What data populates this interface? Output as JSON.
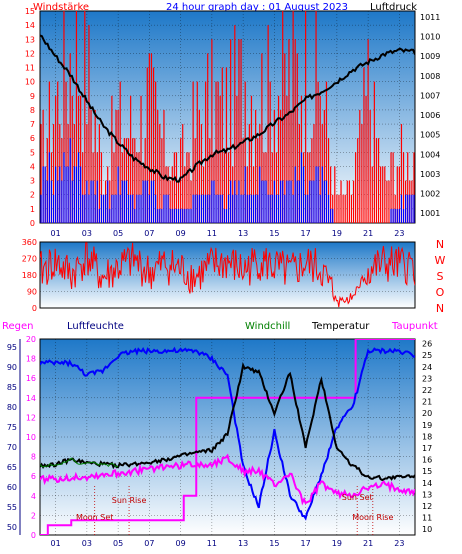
{
  "title": "24 hour graph day : 01 August 2023",
  "colors": {
    "red": "#ff0000",
    "blue": "#0000ff",
    "black": "#000000",
    "magenta": "#ff00ff",
    "green": "#008000",
    "navy": "#000080",
    "darkred": "#c00000",
    "sky_top": "#1e78c8",
    "sky_bottom": "#ffffff"
  },
  "chart_data": [
    {
      "id": "wind_pressure",
      "type": "bar",
      "title": "24 hour graph day : 01 August 2023",
      "left_label": "Windstärke",
      "right_label": "Luftdruck",
      "x_ticks": [
        "01",
        "03",
        "05",
        "07",
        "09",
        "11",
        "13",
        "15",
        "17",
        "19",
        "21",
        "23"
      ],
      "y_left_ticks": [
        "0",
        "1",
        "2",
        "3",
        "4",
        "5",
        "6",
        "7",
        "8",
        "9",
        "10",
        "11",
        "12",
        "13",
        "14",
        "15"
      ],
      "y_left_range": [
        0,
        15
      ],
      "y_right_ticks": [
        "1001",
        "1002",
        "1003",
        "1004",
        "1005",
        "1006",
        "1007",
        "1008",
        "1009",
        "1010",
        "1011"
      ],
      "y_right_range": [
        1000.5,
        1011.3
      ],
      "x_range": [
        0,
        24
      ],
      "series": [
        {
          "role": "gust",
          "color": "red",
          "x": [
            0,
            1,
            2,
            3,
            4,
            5,
            6,
            7,
            8,
            9,
            10,
            11,
            12,
            13,
            14,
            15,
            16,
            17,
            18,
            19,
            20,
            21,
            22,
            23
          ],
          "values": [
            6,
            11,
            15,
            14,
            5,
            9,
            8,
            11,
            6,
            5,
            9,
            11,
            10,
            13,
            12,
            12,
            13,
            14,
            12,
            2,
            3,
            12,
            4,
            6
          ]
        },
        {
          "role": "average",
          "color": "blue",
          "x": [
            0,
            1,
            2,
            3,
            4,
            5,
            6,
            7,
            8,
            9,
            10,
            11,
            12,
            13,
            14,
            15,
            16,
            17,
            18,
            19,
            20,
            21,
            22,
            23
          ],
          "values": [
            3,
            4,
            5,
            4,
            2,
            3,
            2,
            3,
            2,
            1,
            2,
            3,
            2,
            3,
            3,
            3,
            3,
            4,
            3,
            0,
            0,
            0,
            0,
            2
          ]
        },
        {
          "role": "pressure",
          "color": "black",
          "axis": "right",
          "x": [
            0,
            1,
            2,
            3,
            4,
            5,
            6,
            7,
            8,
            9,
            10,
            11,
            12,
            13,
            14,
            15,
            16,
            17,
            18,
            19,
            20,
            21,
            22,
            23,
            24
          ],
          "values": [
            1010.1,
            1009.0,
            1008.0,
            1006.7,
            1005.5,
            1004.6,
            1003.8,
            1003.3,
            1002.8,
            1002.7,
            1003.4,
            1004.0,
            1004.2,
            1004.6,
            1005.0,
            1005.6,
            1006.1,
            1006.8,
            1007.2,
            1007.7,
            1008.3,
            1008.7,
            1009.1,
            1009.3,
            1009.2
          ]
        }
      ]
    },
    {
      "id": "wind_direction",
      "type": "line",
      "y_ticks": [
        "0",
        "90",
        "180",
        "270",
        "360"
      ],
      "y_range": [
        0,
        360
      ],
      "compass_labels": [
        "N",
        "W",
        "S",
        "O",
        "N"
      ],
      "x_range": [
        0,
        24
      ],
      "series": [
        {
          "role": "direction",
          "color": "red",
          "x": [
            0,
            1,
            2,
            3,
            4,
            5,
            6,
            7,
            8,
            9,
            10,
            11,
            12,
            13,
            14,
            15,
            16,
            17,
            18,
            19,
            20,
            21,
            22,
            23
          ],
          "values": [
            200,
            250,
            180,
            280,
            160,
            220,
            260,
            190,
            240,
            210,
            170,
            230,
            250,
            200,
            260,
            220,
            190,
            240,
            210,
            30,
            60,
            200,
            240,
            230
          ]
        }
      ]
    },
    {
      "id": "rain_humidity_temperature",
      "type": "line",
      "labels": {
        "regen": "Regen",
        "luftfeuchte": "Luftfeuchte",
        "windchill": "Windchill",
        "temperatur": "Temperatur",
        "taupunkt": "Taupunkt"
      },
      "x_ticks": [
        "01",
        "03",
        "05",
        "07",
        "09",
        "11",
        "13",
        "15",
        "17",
        "19",
        "21",
        "23"
      ],
      "x_range": [
        0,
        24
      ],
      "y_rain_ticks": [
        "0",
        "2",
        "4",
        "6",
        "8",
        "10",
        "12",
        "14",
        "16",
        "18",
        "20"
      ],
      "y_rain_range": [
        0,
        20
      ],
      "y_hum_ticks": [
        "50",
        "55",
        "60",
        "65",
        "70",
        "75",
        "80",
        "85",
        "90",
        "95"
      ],
      "y_hum_range": [
        48,
        97
      ],
      "y_temp_ticks": [
        "10",
        "11",
        "12",
        "13",
        "14",
        "15",
        "16",
        "17",
        "18",
        "19",
        "20",
        "21",
        "22",
        "23",
        "24",
        "25",
        "26"
      ],
      "y_temp_range": [
        9.5,
        26.4
      ],
      "annotations": [
        {
          "text": "Sun Rise",
          "x": 5.7
        },
        {
          "text": "Moon Set",
          "x": 3.5
        },
        {
          "text": "Sun Set",
          "x": 20.3
        },
        {
          "text": "Moon Rise",
          "x": 21.3
        }
      ],
      "series": [
        {
          "role": "rain",
          "color": "magenta",
          "x": [
            0,
            0.5,
            1,
            2,
            3,
            4,
            5,
            6,
            7,
            8,
            9,
            9.2,
            10,
            12,
            13,
            14,
            15,
            16,
            17,
            18,
            19,
            20,
            20.2,
            21,
            22,
            23,
            24
          ],
          "values": [
            0,
            1,
            1,
            1.5,
            1.5,
            1.5,
            1.5,
            1.5,
            1.5,
            1.5,
            1.5,
            4,
            14,
            14,
            14,
            14,
            14,
            14,
            14,
            14,
            14,
            14,
            20,
            20,
            20,
            20,
            20
          ]
        },
        {
          "role": "humidity",
          "color": "blue",
          "axis": "humidity",
          "x": [
            0,
            1,
            2,
            3,
            4,
            5,
            6,
            7,
            8,
            9,
            10,
            11,
            12,
            13,
            14,
            15,
            16,
            17,
            18,
            19,
            20,
            21,
            22,
            23,
            24
          ],
          "values": [
            91,
            91,
            91,
            88,
            89,
            93,
            94,
            94,
            94,
            94,
            94,
            92,
            88,
            65,
            55,
            74,
            58,
            52,
            63,
            75,
            80,
            94,
            94,
            94,
            93
          ]
        },
        {
          "role": "temperature",
          "color": "black",
          "axis": "temperature",
          "x": [
            0,
            1,
            2,
            3,
            4,
            5,
            6,
            7,
            8,
            9,
            10,
            11,
            12,
            13,
            14,
            15,
            16,
            17,
            18,
            19,
            20,
            21,
            22,
            23,
            24
          ],
          "values": [
            15.5,
            15.6,
            16.0,
            15.7,
            15.6,
            15.5,
            15.6,
            15.8,
            16.0,
            16.3,
            16.6,
            16.8,
            18.2,
            24.0,
            23.5,
            20.0,
            23.5,
            17.0,
            23.0,
            17.0,
            15.5,
            14.5,
            14.4,
            14.5,
            14.6
          ]
        },
        {
          "role": "windchill",
          "color": "green",
          "axis": "temperature",
          "x": [
            0,
            1,
            2,
            2.5,
            3,
            4,
            5
          ],
          "values": [
            15.5,
            15.6,
            16.0,
            15.5,
            15.7,
            15.6,
            15.5
          ]
        },
        {
          "role": "dewpoint",
          "color": "magenta",
          "axis": "temperature",
          "x": [
            0,
            1,
            2,
            3,
            4,
            5,
            6,
            7,
            8,
            9,
            10,
            11,
            12,
            13,
            14,
            15,
            16,
            17,
            18,
            19,
            20,
            21,
            22,
            23,
            24
          ],
          "values": [
            14.3,
            14.3,
            14.5,
            14.5,
            14.7,
            14.8,
            15.0,
            15.2,
            15.4,
            15.5,
            15.6,
            15.6,
            16.2,
            15.0,
            15.0,
            13.8,
            14.8,
            12.0,
            14.0,
            13.0,
            13.0,
            13.5,
            13.8,
            13.5,
            13.2
          ]
        }
      ]
    }
  ]
}
